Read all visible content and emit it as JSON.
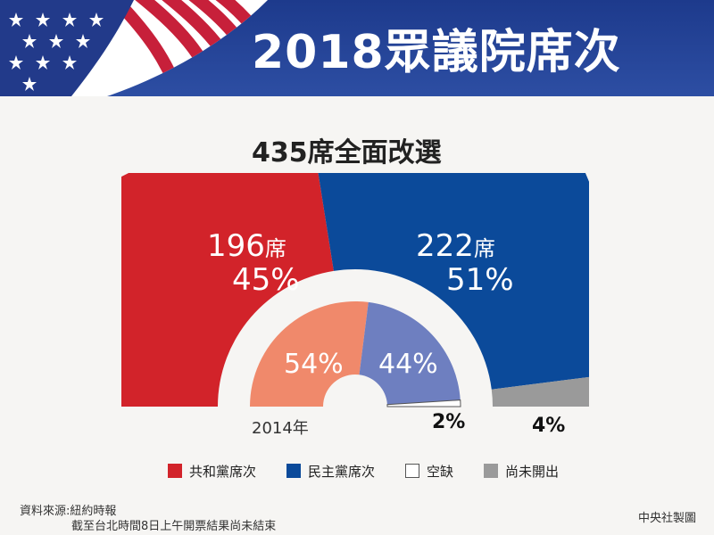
{
  "header": {
    "title": "2018眾議院席次",
    "flag_colors": {
      "stripe_red": "#c7203a",
      "stripe_white": "#ffffff",
      "canton_blue": "#223a8a",
      "banner_blue": "#1f3a8f"
    }
  },
  "subtitle": "435席全面改選",
  "chart_data": {
    "type": "pie",
    "layout": "nested semicircle",
    "rings": [
      {
        "name": "2018",
        "total_seats": 435,
        "segments": [
          {
            "key": "republican",
            "seats_label": "196席",
            "seats_number": "196",
            "seats_unit": "席",
            "percent": 45,
            "percent_label": "45%",
            "color": "#d2232a"
          },
          {
            "key": "democrat",
            "seats_label": "222席",
            "seats_number": "222",
            "seats_unit": "席",
            "percent": 51,
            "percent_label": "51%",
            "color": "#0b4a9a"
          },
          {
            "key": "undecided",
            "percent": 4,
            "percent_label": "4%",
            "color": "#9a9a9a"
          }
        ]
      },
      {
        "name": "2014年",
        "segments": [
          {
            "key": "republican",
            "percent": 54,
            "percent_label": "54%",
            "color": "#f0896b"
          },
          {
            "key": "democrat",
            "percent": 44,
            "percent_label": "44%",
            "color": "#6e7fc0"
          },
          {
            "key": "vacant",
            "percent": 2,
            "percent_label": "2%",
            "color": "#ffffff"
          }
        ]
      }
    ]
  },
  "legend": [
    {
      "label": "共和黨席次",
      "color": "#d2232a"
    },
    {
      "label": "民主黨席次",
      "color": "#0b4a9a"
    },
    {
      "label": "空缺",
      "color": "#ffffff"
    },
    {
      "label": "尚未開出",
      "color": "#9a9a9a"
    }
  ],
  "footer": {
    "source": "資料來源:紐約時報",
    "note": "截至台北時間8日上午開票結果尚未結束",
    "credit": "中央社製圖"
  }
}
